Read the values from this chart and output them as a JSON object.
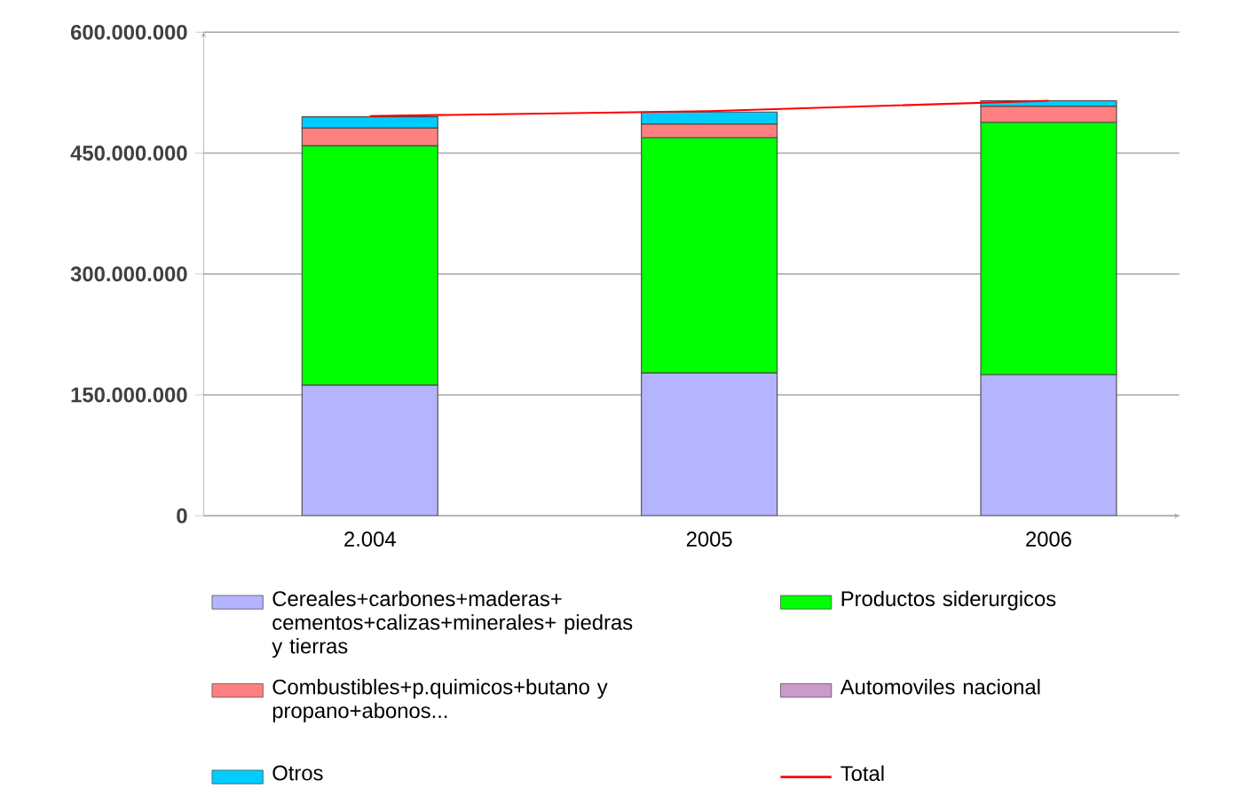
{
  "chart_data": {
    "type": "bar",
    "stacked": true,
    "categories": [
      "2.004",
      "2005",
      "2006"
    ],
    "series": [
      {
        "name": "Cereales+carbones+maderas+ cementos+calizas+minerales+ piedras y tierras",
        "color": "#b4b4ff",
        "values": [
          162000000,
          177000000,
          175000000
        ]
      },
      {
        "name": "Productos siderurgicos",
        "color": "#00ff00",
        "values": [
          297000000,
          292000000,
          313000000
        ]
      },
      {
        "name": "Combustibles+p.quimicos+butano y propano+abonos...",
        "color": "#ff8080",
        "values": [
          22000000,
          17000000,
          20000000
        ]
      },
      {
        "name": "Automoviles nacional",
        "color": "#cc99cc",
        "values": [
          null,
          null,
          null
        ]
      },
      {
        "name": "Otros",
        "color": "#00ccff",
        "values": [
          14000000,
          15000000,
          7000000
        ]
      },
      {
        "name": "Total",
        "type": "line",
        "color": "#ff0000",
        "values": [
          496000000,
          502000000,
          515000000
        ]
      }
    ],
    "ylim": [
      0,
      600000000
    ],
    "yticks": [
      {
        "value": 0,
        "label": "0"
      },
      {
        "value": 150000000,
        "label": "150.000.000"
      },
      {
        "value": 300000000,
        "label": "300.000.000"
      },
      {
        "value": 450000000,
        "label": "450.000.000"
      },
      {
        "value": 600000000,
        "label": "600.000.000"
      }
    ],
    "grid": "y",
    "legend": "bottom"
  }
}
